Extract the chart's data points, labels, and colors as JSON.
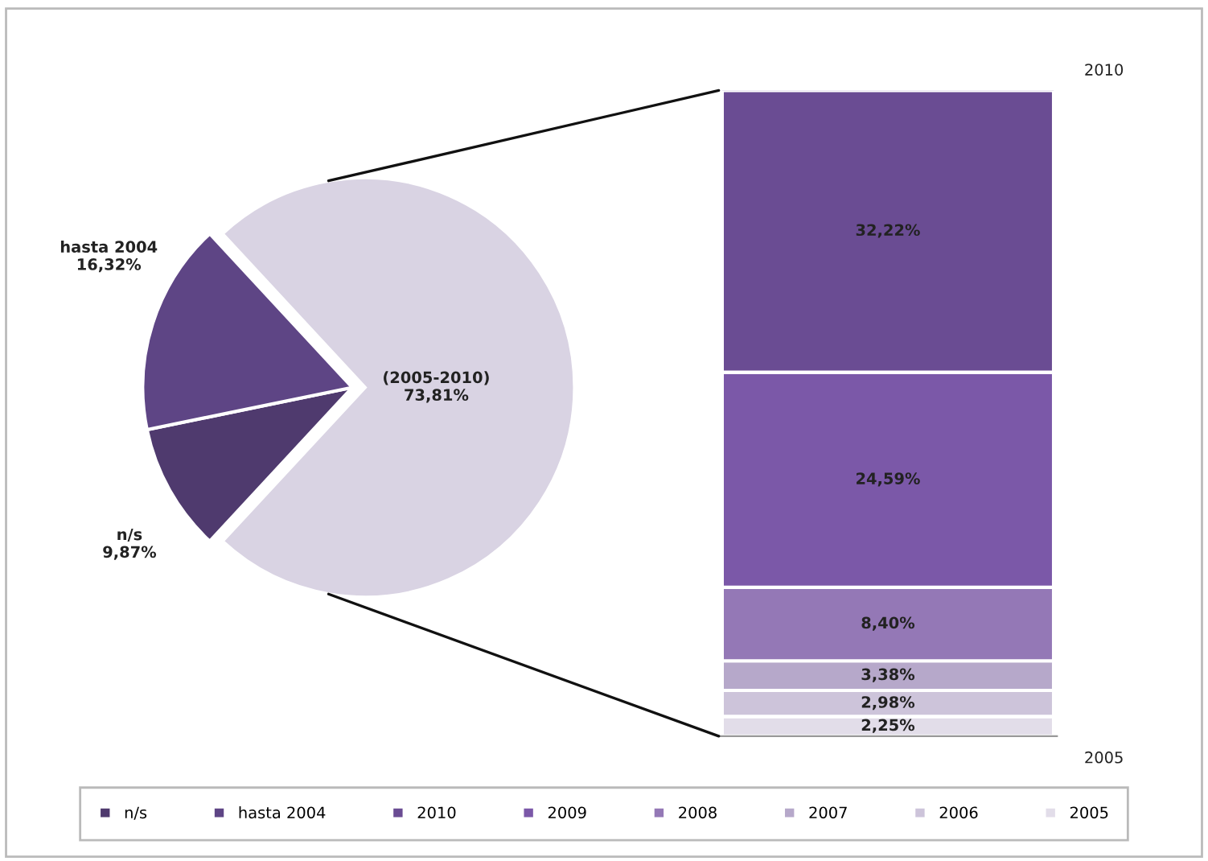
{
  "chart_data": [
    {
      "type": "pie",
      "categories": [
        "n/s",
        "hasta 2004",
        "(2005-2010)"
      ],
      "values": [
        9.87,
        16.32,
        73.81
      ],
      "colors": [
        "#4f3a6e",
        "#5e4585",
        "#d9d3e3"
      ],
      "value_labels": [
        "9,87%",
        "16,32%",
        "73,81%"
      ],
      "legend": "bottom"
    },
    {
      "type": "bar",
      "stacked": true,
      "categories": [
        null
      ],
      "legend": "bottom",
      "annotations": [
        "2010",
        "2005"
      ],
      "series": [
        {
          "name": "2005",
          "color": "#e2dde9",
          "values": [
            2.25
          ],
          "value_labels": [
            "2,25%"
          ]
        },
        {
          "name": "2006",
          "color": "#cdc4da",
          "values": [
            2.98
          ],
          "value_labels": [
            "2,98%"
          ]
        },
        {
          "name": "2007",
          "color": "#b6a8ca",
          "values": [
            3.38
          ],
          "value_labels": [
            "3,38%"
          ]
        },
        {
          "name": "2008",
          "color": "#9478b6",
          "values": [
            8.4
          ],
          "value_labels": [
            "8,40%"
          ]
        },
        {
          "name": "2009",
          "color": "#7b58a8",
          "values": [
            24.59
          ],
          "value_labels": [
            "24,59%"
          ]
        },
        {
          "name": "2010",
          "color": "#6a4c93",
          "values": [
            32.22
          ],
          "value_labels": [
            "32,22%"
          ]
        }
      ]
    }
  ]
}
